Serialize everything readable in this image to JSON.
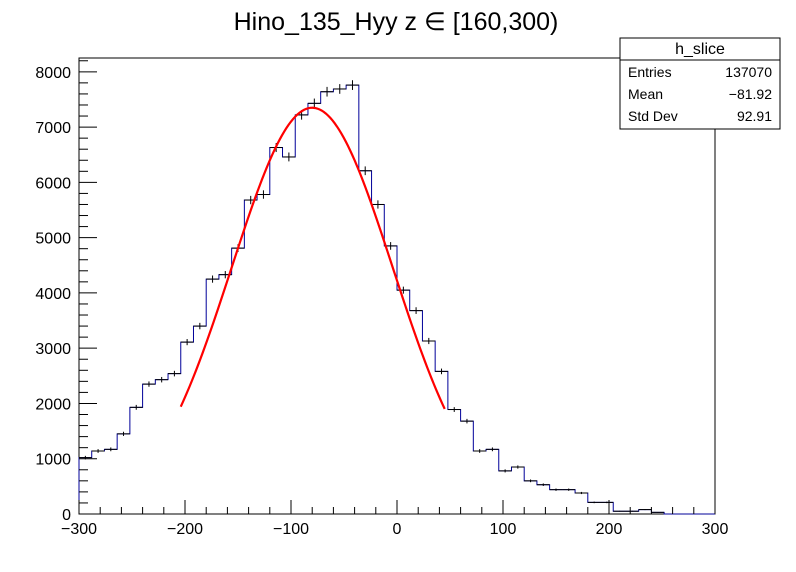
{
  "chart_data": {
    "type": "histogram",
    "title": "Hino_135_Hyy z  ∈ [160,300)",
    "xlim": [
      -300,
      300
    ],
    "ylim": [
      0,
      8250
    ],
    "x_ticks": [
      -300,
      -200,
      -100,
      0,
      100,
      200,
      300
    ],
    "x_tick_labels": [
      "−300",
      "−200",
      "−100",
      "0",
      "100",
      "200",
      "300"
    ],
    "y_ticks": [
      0,
      1000,
      2000,
      3000,
      4000,
      5000,
      6000,
      7000,
      8000
    ],
    "y_tick_labels": [
      "0",
      "1000",
      "2000",
      "3000",
      "4000",
      "5000",
      "6000",
      "7000",
      "8000"
    ],
    "bin_width": 12,
    "bin_edges_start": -300,
    "series": [
      {
        "name": "h_slice",
        "color": "#000099",
        "values": [
          1020,
          1140,
          1170,
          1450,
          1930,
          2350,
          2430,
          2540,
          3110,
          3400,
          4250,
          4330,
          4810,
          5680,
          5780,
          6630,
          6460,
          7220,
          7430,
          7640,
          7690,
          7760,
          6210,
          5600,
          4850,
          4050,
          3680,
          3130,
          2580,
          1890,
          1680,
          1140,
          1170,
          780,
          850,
          600,
          530,
          440,
          440,
          380,
          210,
          210,
          50,
          50,
          80,
          30,
          0,
          0,
          0,
          0
        ]
      }
    ],
    "fit": {
      "color": "#ff0000",
      "x_range": [
        -204,
        45
      ],
      "amplitude": 7350,
      "mean": -80,
      "sigma": 76
    }
  },
  "stats_box": {
    "title": "h_slice",
    "rows": [
      {
        "label": "Entries",
        "value": "137070"
      },
      {
        "label": "Mean",
        "value": "−81.92"
      },
      {
        "label": "Std Dev",
        "value": "92.91"
      }
    ]
  }
}
